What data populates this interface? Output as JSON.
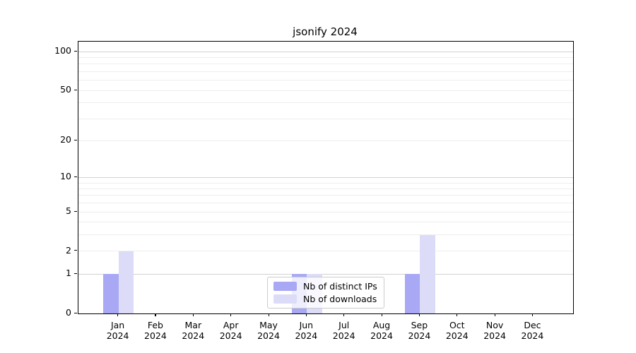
{
  "title": "jsonify 2024",
  "chart_data": {
    "type": "bar",
    "title": "jsonify 2024",
    "categories": [
      "Jan 2024",
      "Feb 2024",
      "Mar 2024",
      "Apr 2024",
      "May 2024",
      "Jun 2024",
      "Jul 2024",
      "Aug 2024",
      "Sep 2024",
      "Oct 2024",
      "Nov 2024",
      "Dec 2024"
    ],
    "series": [
      {
        "name": "Nb of distinct IPs",
        "color": "#a8a8f5",
        "values": [
          1,
          0,
          0,
          0,
          0,
          1,
          0,
          0,
          1,
          0,
          0,
          0
        ]
      },
      {
        "name": "Nb of downloads",
        "color": "#dcdcf8",
        "values": [
          2,
          0,
          0,
          0,
          0,
          1,
          0,
          0,
          3,
          0,
          0,
          0
        ]
      }
    ],
    "xlabel": "",
    "ylabel": "",
    "y_axis": {
      "scale": "log1p",
      "labeled_ticks": [
        0,
        1,
        2,
        5,
        10,
        20,
        50,
        100
      ],
      "major_gridlines": [
        1,
        10,
        100
      ],
      "minor_gridlines": [
        2,
        3,
        4,
        5,
        6,
        7,
        8,
        9,
        20,
        30,
        40,
        50,
        60,
        70,
        80,
        90
      ],
      "ylim": [
        0,
        120
      ]
    },
    "legend": {
      "position": "lower center",
      "entries": [
        "Nb of distinct IPs",
        "Nb of downloads"
      ]
    },
    "grid": true
  }
}
